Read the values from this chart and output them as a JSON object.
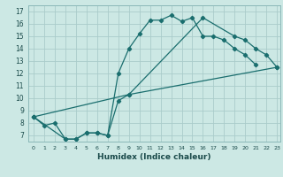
{
  "xlabel": "Humidex (Indice chaleur)",
  "bg_color": "#cce8e4",
  "grid_color": "#aaccca",
  "line_color": "#1a6e6e",
  "xlim": [
    -0.5,
    23.3
  ],
  "ylim": [
    6.5,
    17.5
  ],
  "line1_x": [
    0,
    1,
    2,
    3,
    4,
    5,
    6,
    7,
    8,
    9,
    10,
    11,
    12,
    13,
    14,
    15,
    16,
    17,
    18,
    19,
    20,
    21
  ],
  "line1_y": [
    8.5,
    7.8,
    8.0,
    6.7,
    6.7,
    7.2,
    7.2,
    7.0,
    12.0,
    14.0,
    15.2,
    16.3,
    16.3,
    16.7,
    16.2,
    16.5,
    15.0,
    15.0,
    14.7,
    14.0,
    13.5,
    12.7
  ],
  "line2_x": [
    0,
    3,
    4,
    5,
    6,
    7,
    8,
    9,
    23
  ],
  "line2_y": [
    8.5,
    6.7,
    6.7,
    7.2,
    7.2,
    7.0,
    9.8,
    10.3,
    12.5
  ],
  "line3_x": [
    0,
    9,
    16,
    19,
    20,
    21,
    22,
    23
  ],
  "line3_y": [
    8.5,
    10.3,
    16.5,
    15.0,
    14.7,
    14.0,
    13.5,
    12.5
  ]
}
